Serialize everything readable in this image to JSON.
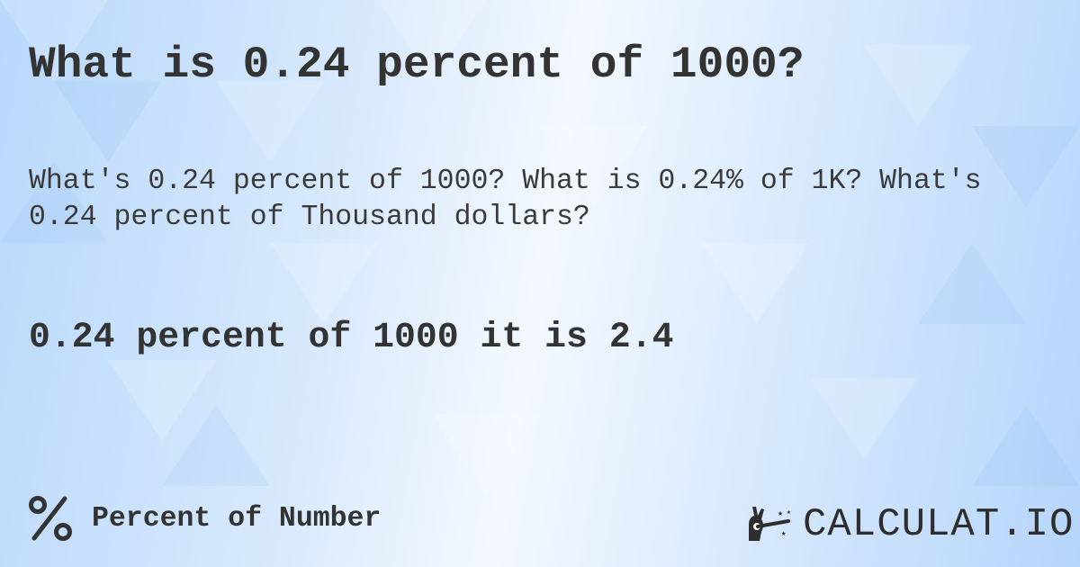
{
  "title": "What is 0.24 percent of 1000?",
  "description": "What's 0.24 percent of 1000? What is 0.24% of 1K? What's 0.24 percent of Thousand dollars?",
  "result": "0.24 percent of 1000 it is 2.4",
  "footer": {
    "category_icon": "percent-icon",
    "category_label": "Percent of Number",
    "logo_text": "CALCULAT.IO",
    "logo_icon": "magic-wand-hand-icon"
  },
  "colors": {
    "text": "#333333",
    "background": "#cfe4fc"
  }
}
